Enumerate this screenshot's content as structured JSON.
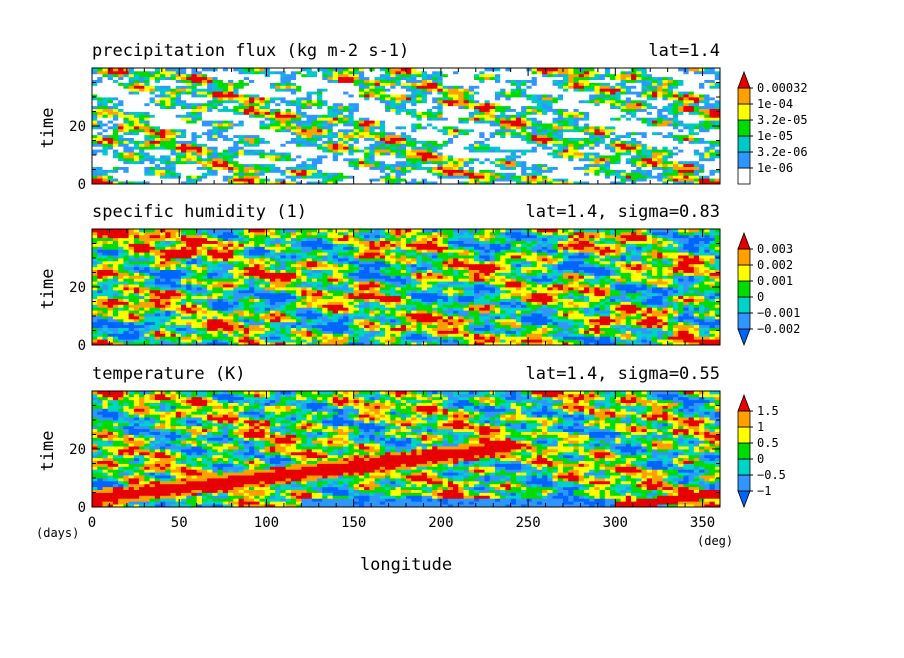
{
  "chart_data": [
    {
      "type": "heatmap",
      "title": "precipitation flux (kg m-2 s-1)",
      "info": "lat=1.4",
      "ylabel": "time",
      "xlim": [
        0,
        360
      ],
      "ylim": [
        0,
        40
      ],
      "yticks": [
        "0",
        "20"
      ],
      "colorbar": {
        "labels": [
          "1e-06",
          "3.2e-06",
          "1e-05",
          "3.2e-05",
          "1e-04",
          "0.00032"
        ],
        "colors": [
          "#ffffff",
          "#2f96ff",
          "#00c8c8",
          "#00dc00",
          "#ffff00",
          "#ffa000",
          "#e60000"
        ]
      }
    },
    {
      "type": "heatmap",
      "title": "specific humidity (1)",
      "info": "lat=1.4, sigma=0.83",
      "ylabel": "time",
      "xlim": [
        0,
        360
      ],
      "ylim": [
        0,
        40
      ],
      "yticks": [
        "0",
        "20"
      ],
      "colorbar": {
        "labels": [
          "−0.002",
          "−0.001",
          "0",
          "0.001",
          "0.002",
          "0.003"
        ],
        "colors": [
          "#0064ff",
          "#2f96ff",
          "#00d2c8",
          "#00dc00",
          "#ffff00",
          "#ffa000",
          "#e60000"
        ]
      }
    },
    {
      "type": "heatmap",
      "title": "temperature (K)",
      "info": "lat=1.4, sigma=0.55",
      "ylabel": "time",
      "xlim": [
        0,
        360
      ],
      "ylim": [
        0,
        40
      ],
      "yticks": [
        "0",
        "20"
      ],
      "xticks": [
        "0",
        "50",
        "100",
        "150",
        "200",
        "250",
        "300",
        "350"
      ],
      "xlabel": "longitude",
      "x_unit": "(deg)",
      "y_unit": "(days)",
      "colorbar": {
        "labels": [
          "−1",
          "−0.5",
          "0",
          "0.5",
          "1",
          "1.5"
        ],
        "colors": [
          "#0064ff",
          "#2f96ff",
          "#00d2c8",
          "#00dc00",
          "#ffff00",
          "#ffa000",
          "#e60000"
        ]
      }
    }
  ]
}
